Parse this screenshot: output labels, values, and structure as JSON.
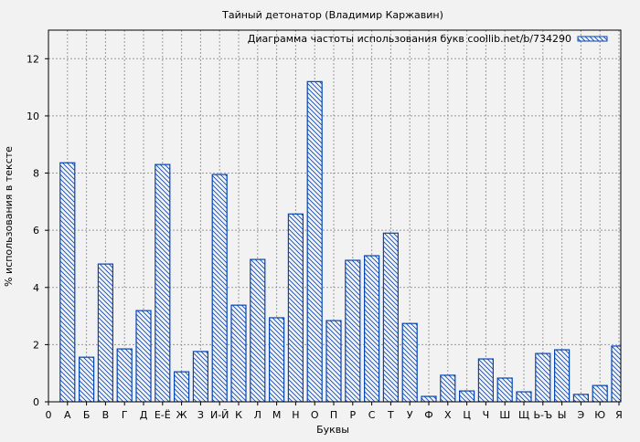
{
  "chart_data": {
    "type": "bar",
    "title": "Тайный детонатор (Владимир Каржавин)",
    "xlabel": "Буквы",
    "ylabel": "% использования в тексте",
    "legend": "Диаграмма частоты использования букв coollib.net/b/734290",
    "legend_position": "top-right",
    "x_tick_zero": "0",
    "categories": [
      "А",
      "Б",
      "В",
      "Г",
      "Д",
      "Е-Ё",
      "Ж",
      "З",
      "И-Й",
      "К",
      "Л",
      "М",
      "Н",
      "О",
      "П",
      "Р",
      "С",
      "Т",
      "У",
      "Ф",
      "Х",
      "Ц",
      "Ч",
      "Ш",
      "Щ",
      "Ь-Ъ",
      "Ы",
      "Э",
      "Ю",
      "Я"
    ],
    "values": [
      8.36,
      1.56,
      4.82,
      1.85,
      3.19,
      8.3,
      1.05,
      1.76,
      7.95,
      3.38,
      4.98,
      2.94,
      6.57,
      11.2,
      2.84,
      4.95,
      5.11,
      5.9,
      2.74,
      0.19,
      0.93,
      0.38,
      1.5,
      0.83,
      0.35,
      1.69,
      1.82,
      0.26,
      0.57,
      1.95
    ],
    "ylim": [
      0,
      13
    ],
    "yticks": [
      0,
      2,
      4,
      6,
      8,
      10,
      12
    ],
    "grid": true,
    "bar_color": "#0645b4"
  }
}
